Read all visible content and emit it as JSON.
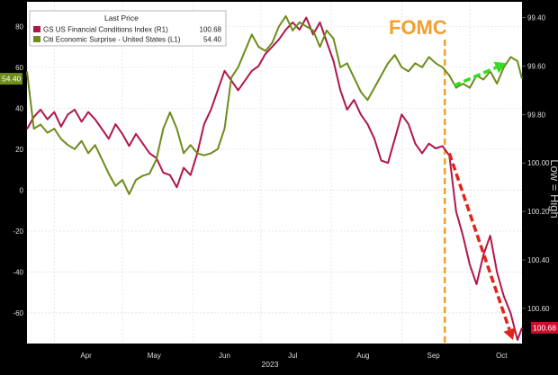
{
  "chart_data": {
    "type": "line",
    "legend": {
      "title": "Last Price",
      "placement": "top-left",
      "entries": [
        {
          "name": "GS US Financial Conditions Index (R1)",
          "value": "100.68",
          "color": "#b0174a"
        },
        {
          "name": "Citi Economic Surprise - United States (L1)",
          "value": "54.40",
          "color": "#6d8c1a"
        }
      ]
    },
    "x_axis": {
      "ticks": [
        "Apr",
        "May",
        "Jun",
        "Jul",
        "Aug",
        "Sep",
        "Oct"
      ],
      "year_label": "2023",
      "range": [
        "2023-03-20",
        "2023-10-24"
      ]
    },
    "y_left": {
      "ticks": [
        "80",
        "60",
        "40",
        "20",
        "0",
        "-20",
        "-40",
        "-60"
      ],
      "range": [
        -75,
        92
      ],
      "current_badge": "54.40",
      "badge_color": "#6d8c1a"
    },
    "y_right": {
      "ticks": [
        "99.40",
        "99.60",
        "99.80",
        "100.00",
        "100.20",
        "100.40",
        "100.60"
      ],
      "range": [
        99.335,
        100.745
      ],
      "inverted": true,
      "current_badge": "100.68",
      "badge_color": "#c8102e",
      "side_label": "Low = High"
    },
    "grid": true,
    "annotations": {
      "fomc_label": "FOMC",
      "fomc_date": "2023-09-20",
      "fomc_color": "#f0a030",
      "green_arrow": {
        "from": [
          "2023-09-24",
          51
        ],
        "to": [
          "2023-10-17",
          62
        ],
        "color": "#33dd22"
      },
      "red_arrow": {
        "from": [
          "2023-09-22",
          99.96
        ],
        "to": [
          "2023-10-20",
          100.73
        ],
        "color": "#e0251b"
      }
    },
    "series": [
      {
        "name": "GS US Financial Conditions Index (R1)",
        "axis": "right",
        "color": "#b0174a",
        "points": [
          [
            "2023-03-20",
            99.86
          ],
          [
            "2023-03-23",
            99.81
          ],
          [
            "2023-03-26",
            99.78
          ],
          [
            "2023-03-29",
            99.82
          ],
          [
            "2023-04-01",
            99.79
          ],
          [
            "2023-04-04",
            99.85
          ],
          [
            "2023-04-07",
            99.8
          ],
          [
            "2023-04-10",
            99.78
          ],
          [
            "2023-04-13",
            99.83
          ],
          [
            "2023-04-16",
            99.79
          ],
          [
            "2023-04-19",
            99.82
          ],
          [
            "2023-04-22",
            99.86
          ],
          [
            "2023-04-25",
            99.9
          ],
          [
            "2023-04-28",
            99.84
          ],
          [
            "2023-05-01",
            99.88
          ],
          [
            "2023-05-04",
            99.93
          ],
          [
            "2023-05-07",
            99.88
          ],
          [
            "2023-05-10",
            99.92
          ],
          [
            "2023-05-13",
            99.96
          ],
          [
            "2023-05-16",
            99.98
          ],
          [
            "2023-05-19",
            100.04
          ],
          [
            "2023-05-22",
            100.05
          ],
          [
            "2023-05-25",
            100.1
          ],
          [
            "2023-05-28",
            100.02
          ],
          [
            "2023-05-31",
            100.05
          ],
          [
            "2023-06-03",
            99.96
          ],
          [
            "2023-06-06",
            99.84
          ],
          [
            "2023-06-09",
            99.78
          ],
          [
            "2023-06-12",
            99.7
          ],
          [
            "2023-06-15",
            99.62
          ],
          [
            "2023-06-18",
            99.66
          ],
          [
            "2023-06-21",
            99.7
          ],
          [
            "2023-06-24",
            99.66
          ],
          [
            "2023-06-27",
            99.62
          ],
          [
            "2023-06-30",
            99.6
          ],
          [
            "2023-07-03",
            99.55
          ],
          [
            "2023-07-06",
            99.52
          ],
          [
            "2023-07-09",
            99.49
          ],
          [
            "2023-07-12",
            99.45
          ],
          [
            "2023-07-15",
            99.42
          ],
          [
            "2023-07-18",
            99.45
          ],
          [
            "2023-07-21",
            99.4
          ],
          [
            "2023-07-24",
            99.47
          ],
          [
            "2023-07-27",
            99.42
          ],
          [
            "2023-07-30",
            99.5
          ],
          [
            "2023-08-02",
            99.58
          ],
          [
            "2023-08-05",
            99.7
          ],
          [
            "2023-08-08",
            99.78
          ],
          [
            "2023-08-11",
            99.74
          ],
          [
            "2023-08-14",
            99.8
          ],
          [
            "2023-08-17",
            99.84
          ],
          [
            "2023-08-20",
            99.9
          ],
          [
            "2023-08-23",
            99.99
          ],
          [
            "2023-08-26",
            100.0
          ],
          [
            "2023-08-29",
            99.9
          ],
          [
            "2023-09-01",
            99.8
          ],
          [
            "2023-09-04",
            99.84
          ],
          [
            "2023-09-07",
            99.92
          ],
          [
            "2023-09-10",
            99.96
          ],
          [
            "2023-09-13",
            99.92
          ],
          [
            "2023-09-16",
            99.94
          ],
          [
            "2023-09-19",
            99.93
          ],
          [
            "2023-09-22",
            99.97
          ],
          [
            "2023-09-25",
            100.2
          ],
          [
            "2023-09-28",
            100.3
          ],
          [
            "2023-10-01",
            100.42
          ],
          [
            "2023-10-04",
            100.5
          ],
          [
            "2023-10-07",
            100.38
          ],
          [
            "2023-10-10",
            100.3
          ],
          [
            "2023-10-13",
            100.45
          ],
          [
            "2023-10-16",
            100.55
          ],
          [
            "2023-10-19",
            100.62
          ],
          [
            "2023-10-22",
            100.73
          ],
          [
            "2023-10-24",
            100.68
          ]
        ]
      },
      {
        "name": "Citi Economic Surprise - United States (L1)",
        "axis": "left",
        "color": "#6d8c1a",
        "points": [
          [
            "2023-03-20",
            58
          ],
          [
            "2023-03-23",
            30
          ],
          [
            "2023-03-26",
            32
          ],
          [
            "2023-03-29",
            28
          ],
          [
            "2023-04-01",
            30
          ],
          [
            "2023-04-04",
            25
          ],
          [
            "2023-04-07",
            22
          ],
          [
            "2023-04-10",
            20
          ],
          [
            "2023-04-13",
            24
          ],
          [
            "2023-04-16",
            18
          ],
          [
            "2023-04-19",
            22
          ],
          [
            "2023-04-22",
            15
          ],
          [
            "2023-04-25",
            8
          ],
          [
            "2023-04-28",
            2
          ],
          [
            "2023-05-01",
            5
          ],
          [
            "2023-05-04",
            -2
          ],
          [
            "2023-05-07",
            5
          ],
          [
            "2023-05-10",
            7
          ],
          [
            "2023-05-13",
            8
          ],
          [
            "2023-05-16",
            15
          ],
          [
            "2023-05-19",
            30
          ],
          [
            "2023-05-22",
            38
          ],
          [
            "2023-05-25",
            30
          ],
          [
            "2023-05-28",
            18
          ],
          [
            "2023-05-31",
            22
          ],
          [
            "2023-06-03",
            18
          ],
          [
            "2023-06-06",
            17
          ],
          [
            "2023-06-09",
            18
          ],
          [
            "2023-06-12",
            20
          ],
          [
            "2023-06-15",
            30
          ],
          [
            "2023-06-18",
            55
          ],
          [
            "2023-06-21",
            60
          ],
          [
            "2023-06-24",
            68
          ],
          [
            "2023-06-27",
            76
          ],
          [
            "2023-06-30",
            70
          ],
          [
            "2023-07-03",
            68
          ],
          [
            "2023-07-06",
            72
          ],
          [
            "2023-07-09",
            80
          ],
          [
            "2023-07-12",
            85
          ],
          [
            "2023-07-15",
            78
          ],
          [
            "2023-07-18",
            82
          ],
          [
            "2023-07-21",
            80
          ],
          [
            "2023-07-24",
            78
          ],
          [
            "2023-07-27",
            70
          ],
          [
            "2023-07-30",
            78
          ],
          [
            "2023-08-02",
            74
          ],
          [
            "2023-08-05",
            60
          ],
          [
            "2023-08-08",
            62
          ],
          [
            "2023-08-11",
            55
          ],
          [
            "2023-08-14",
            48
          ],
          [
            "2023-08-17",
            44
          ],
          [
            "2023-08-20",
            50
          ],
          [
            "2023-08-23",
            56
          ],
          [
            "2023-08-26",
            62
          ],
          [
            "2023-08-29",
            66
          ],
          [
            "2023-09-01",
            60
          ],
          [
            "2023-09-04",
            58
          ],
          [
            "2023-09-07",
            62
          ],
          [
            "2023-09-10",
            60
          ],
          [
            "2023-09-13",
            65
          ],
          [
            "2023-09-16",
            62
          ],
          [
            "2023-09-19",
            60
          ],
          [
            "2023-09-22",
            56
          ],
          [
            "2023-09-25",
            50
          ],
          [
            "2023-09-28",
            52
          ],
          [
            "2023-10-01",
            50
          ],
          [
            "2023-10-04",
            56
          ],
          [
            "2023-10-07",
            54
          ],
          [
            "2023-10-10",
            58
          ],
          [
            "2023-10-13",
            52
          ],
          [
            "2023-10-16",
            60
          ],
          [
            "2023-10-19",
            65
          ],
          [
            "2023-10-22",
            63
          ],
          [
            "2023-10-24",
            54.4
          ]
        ]
      }
    ]
  }
}
